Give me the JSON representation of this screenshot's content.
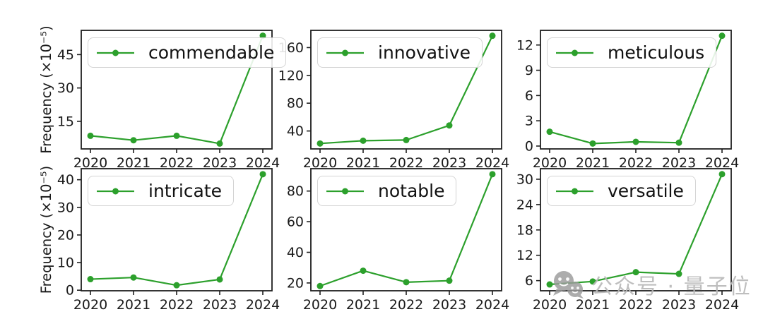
{
  "figure": {
    "background": "#ffffff",
    "line_color": "#2ca02c",
    "axis_color": "#1f1f1f",
    "tick_label_color": "#1a1a1a",
    "ylabel_text": "Frequency (×10⁻⁵)"
  },
  "watermark": {
    "icon": "wechat-official-account-icon",
    "text": "公众号 · 量子位",
    "color": "#b9b9b9"
  },
  "chart_data": [
    {
      "type": "line",
      "name": "commendable",
      "categories": [
        "2020",
        "2021",
        "2022",
        "2023",
        "2024"
      ],
      "values": [
        8.5,
        6.5,
        8.5,
        5.0,
        53.5
      ],
      "yticks": [
        15,
        30,
        45
      ],
      "ylim": [
        2.6,
        55.9
      ],
      "ylabel": "Frequency (×10⁻⁵)",
      "legend_position": "upper left",
      "grid": false
    },
    {
      "type": "line",
      "name": "innovative",
      "categories": [
        "2020",
        "2021",
        "2022",
        "2023",
        "2024"
      ],
      "values": [
        22,
        26,
        27,
        48,
        177
      ],
      "yticks": [
        40,
        80,
        120,
        160
      ],
      "ylim": [
        14.2,
        184.8
      ],
      "ylabel": "",
      "legend_position": "upper left",
      "grid": false
    },
    {
      "type": "line",
      "name": "meticulous",
      "categories": [
        "2020",
        "2021",
        "2022",
        "2023",
        "2024"
      ],
      "values": [
        1.7,
        0.3,
        0.5,
        0.4,
        13.1
      ],
      "yticks": [
        0,
        3,
        6,
        9,
        12
      ],
      "ylim": [
        -0.34,
        13.74
      ],
      "ylabel": "",
      "legend_position": "upper left",
      "grid": false
    },
    {
      "type": "line",
      "name": "intricate",
      "categories": [
        "2020",
        "2021",
        "2022",
        "2023",
        "2024"
      ],
      "values": [
        4.0,
        4.6,
        1.8,
        3.9,
        42
      ],
      "yticks": [
        0,
        10,
        20,
        30,
        40
      ],
      "ylim": [
        -0.2,
        44.0
      ],
      "ylabel": "Frequency (×10⁻⁵)",
      "legend_position": "upper left",
      "grid": false
    },
    {
      "type": "line",
      "name": "notable",
      "categories": [
        "2020",
        "2021",
        "2022",
        "2023",
        "2024"
      ],
      "values": [
        18,
        28,
        20.5,
        21.5,
        91
      ],
      "yticks": [
        20,
        40,
        60,
        80
      ],
      "ylim": [
        14.9,
        94.6
      ],
      "ylabel": "",
      "legend_position": "upper left",
      "grid": false
    },
    {
      "type": "line",
      "name": "versatile",
      "categories": [
        "2020",
        "2021",
        "2022",
        "2023",
        "2024"
      ],
      "values": [
        5.1,
        5.8,
        8.0,
        7.6,
        31.2
      ],
      "yticks": [
        6,
        12,
        18,
        24,
        30
      ],
      "ylim": [
        3.6,
        32.5
      ],
      "ylabel": "",
      "legend_position": "upper left",
      "grid": false
    }
  ]
}
